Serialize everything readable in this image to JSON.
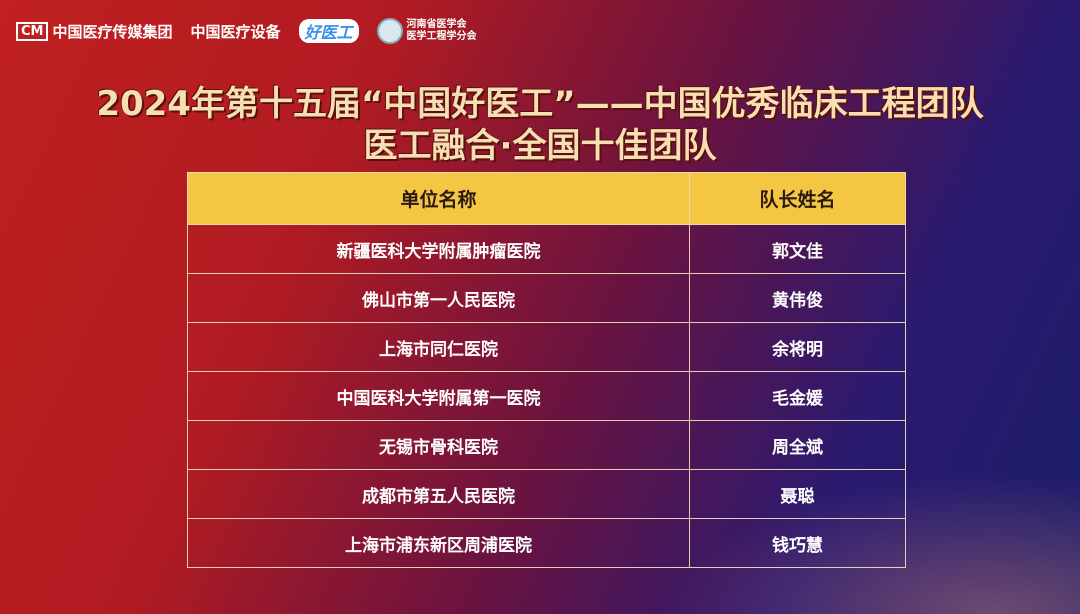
{
  "logos": [
    "中国医疗传媒集团",
    "中国医疗设备",
    "好医工",
    [
      "河南省医学会",
      "医学工程学分会"
    ]
  ],
  "title_line1": "2024年第十五届“中国好医工”——中国优秀临床工程团队",
  "title_line2": "医工融合·全国十佳团队",
  "table": {
    "headers": [
      "单位名称",
      "队长姓名"
    ],
    "rows": [
      [
        "新疆医科大学附属肿瘤医院",
        "郭文佳"
      ],
      [
        "佛山市第一人民医院",
        "黄伟俊"
      ],
      [
        "上海市同仁医院",
        "余将明"
      ],
      [
        "中国医科大学附属第一医院",
        "毛金媛"
      ],
      [
        "无锡市骨科医院",
        "周全斌"
      ],
      [
        "成都市第五人民医院",
        "聂聪"
      ],
      [
        "上海市浦东新区周浦医院",
        "钱巧慧"
      ]
    ]
  }
}
